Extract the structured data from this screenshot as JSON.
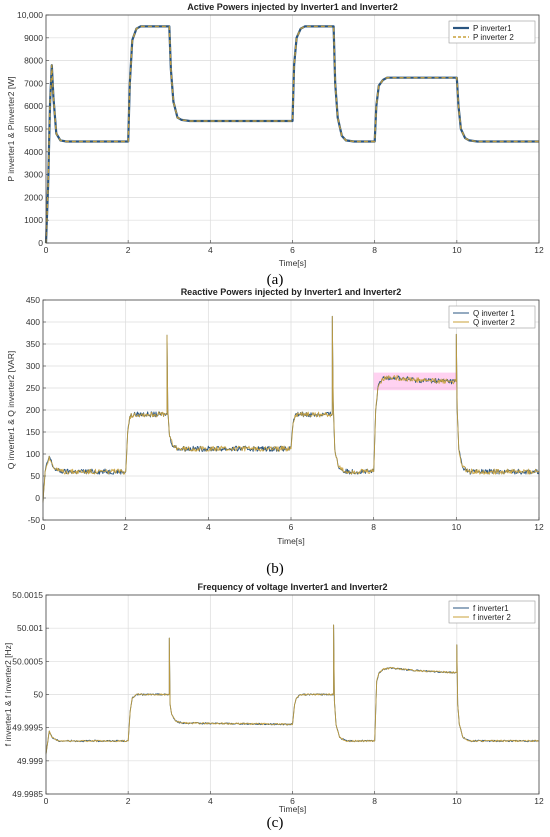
{
  "labels": [
    "(a)",
    "(b)",
    "(c)"
  ],
  "colors": {
    "series_a": "#2a5580",
    "series_b": "#c9a13a",
    "band": "#ff7fd8",
    "grid": "#dcdcdc"
  },
  "chart_data": [
    {
      "type": "line",
      "title": "Active Powers injected by Inverter1 and Inverter2",
      "xlabel": "Time[s]",
      "ylabel": "P inverter1 & Pinverter2 [W]",
      "xlim": [
        0,
        12
      ],
      "ylim": [
        0,
        10000
      ],
      "xticks": [
        "0",
        "2",
        "4",
        "6",
        "8",
        "10",
        "12"
      ],
      "yticks": [
        "0",
        "1000",
        "2000",
        "3000",
        "4000",
        "5000",
        "6000",
        "7000",
        "8000",
        "9000",
        "10,000"
      ],
      "ytick_values": [
        0,
        1000,
        2000,
        3000,
        4000,
        5000,
        6000,
        7000,
        8000,
        9000,
        10000
      ],
      "grid": true,
      "legend": "top-right",
      "series": [
        {
          "name": "P inverter1",
          "style": "solid"
        },
        {
          "name": "P inverter 2",
          "style": "dashed"
        }
      ],
      "x": [
        0,
        0.05,
        0.1,
        0.14,
        0.18,
        0.25,
        0.35,
        0.5,
        1.0,
        2.0,
        2.04,
        2.1,
        2.2,
        2.3,
        2.5,
        3.0,
        3.04,
        3.1,
        3.2,
        3.3,
        3.5,
        6.0,
        6.04,
        6.1,
        6.2,
        6.3,
        6.5,
        7.0,
        7.04,
        7.1,
        7.2,
        7.3,
        7.5,
        8.0,
        8.04,
        8.1,
        8.2,
        8.3,
        8.5,
        10.0,
        10.04,
        10.1,
        10.2,
        10.3,
        10.5,
        12.0
      ],
      "y": [
        0,
        2500,
        6200,
        7800,
        6400,
        4800,
        4500,
        4450,
        4450,
        4450,
        7000,
        8900,
        9400,
        9500,
        9500,
        9500,
        7600,
        6200,
        5500,
        5400,
        5350,
        5350,
        7800,
        9000,
        9400,
        9500,
        9500,
        9500,
        7000,
        5500,
        4700,
        4500,
        4450,
        4450,
        6000,
        6900,
        7150,
        7250,
        7250,
        7250,
        6000,
        5000,
        4600,
        4500,
        4450,
        4450
      ],
      "noise": 0,
      "band_from": 99
    },
    {
      "type": "line",
      "title": "Reactive Powers injected by Inverter1 and Inverter2",
      "xlabel": "Time[s]",
      "ylabel": "Q inverter1 &  Q inverter2 [VAR]",
      "xlim": [
        0,
        12
      ],
      "ylim": [
        -50,
        450
      ],
      "xticks": [
        "0",
        "2",
        "4",
        "6",
        "8",
        "10",
        "12"
      ],
      "yticks": [
        "-50",
        "0",
        "50",
        "100",
        "150",
        "200",
        "250",
        "300",
        "350",
        "400",
        "450"
      ],
      "ytick_values": [
        -50,
        0,
        50,
        100,
        150,
        200,
        250,
        300,
        350,
        400,
        450
      ],
      "grid": true,
      "legend": "top-right",
      "series": [
        {
          "name": "Q inverter 1",
          "style": "solid"
        },
        {
          "name": "Q inverter 2",
          "style": "solid"
        }
      ],
      "x": [
        0,
        0.05,
        0.15,
        0.25,
        0.35,
        0.5,
        2.0,
        2.05,
        2.1,
        2.2,
        3.0,
        3.0,
        3.02,
        3.06,
        3.15,
        3.3,
        6.0,
        6.05,
        6.1,
        6.2,
        7.0,
        7.0,
        7.02,
        7.06,
        7.15,
        7.3,
        8.0,
        8.05,
        8.1,
        8.2,
        8.4,
        9.0,
        10.0,
        10.0,
        10.02,
        10.06,
        10.15,
        10.3,
        12.0
      ],
      "y": [
        -10,
        60,
        95,
        70,
        62,
        60,
        60,
        150,
        185,
        190,
        190,
        370,
        200,
        140,
        118,
        112,
        112,
        170,
        188,
        190,
        190,
        413,
        220,
        110,
        70,
        60,
        60,
        200,
        250,
        270,
        275,
        268,
        265,
        372,
        200,
        110,
        70,
        60,
        60
      ],
      "noise": 6,
      "band_from": 26
    },
    {
      "type": "line",
      "title": "Frequency of voltage Inverter1 and Inverter2",
      "xlabel": "Time[s]",
      "ylabel": "f inverter1 &  f inverter2 [Hz]",
      "xlim": [
        0,
        12
      ],
      "ylim": [
        49.9985,
        50.0015
      ],
      "xticks": [
        "0",
        "2",
        "4",
        "6",
        "8",
        "10",
        "12"
      ],
      "yticks": [
        "49.9985",
        "49.999",
        "49.9995",
        "50",
        "50.0005",
        "50.001",
        "50.0015"
      ],
      "ytick_values": [
        49.9985,
        49.999,
        49.9995,
        50,
        50.0005,
        50.001,
        50.0015
      ],
      "grid": true,
      "legend": "top-right",
      "series": [
        {
          "name": "f inverter1",
          "style": "solid"
        },
        {
          "name": "f inverter 2",
          "style": "solid"
        }
      ],
      "x": [
        0,
        0.08,
        0.15,
        0.3,
        0.5,
        2.0,
        2.05,
        2.1,
        2.2,
        3.0,
        3.0,
        3.02,
        3.06,
        3.15,
        3.3,
        6.0,
        6.05,
        6.1,
        6.2,
        7.0,
        7.0,
        7.02,
        7.06,
        7.15,
        7.3,
        8.0,
        8.05,
        8.1,
        8.2,
        8.4,
        9.0,
        10.0,
        10.0,
        10.02,
        10.06,
        10.15,
        10.3,
        12.0
      ],
      "y": [
        49.9991,
        49.99945,
        49.99935,
        49.9993,
        49.9993,
        49.9993,
        49.99975,
        49.99995,
        50.0,
        50.0,
        50.00085,
        49.99985,
        49.9997,
        49.9996,
        49.99957,
        49.99955,
        49.99985,
        49.99995,
        50.0,
        50.0,
        50.00105,
        49.9999,
        49.99955,
        49.99935,
        49.9993,
        49.9993,
        50.0002,
        50.00032,
        50.00038,
        50.0004,
        50.00036,
        50.00033,
        50.00075,
        49.99985,
        49.99955,
        49.99935,
        49.9993,
        49.9993
      ],
      "noise": 1.2e-05,
      "band_from": 99
    }
  ]
}
